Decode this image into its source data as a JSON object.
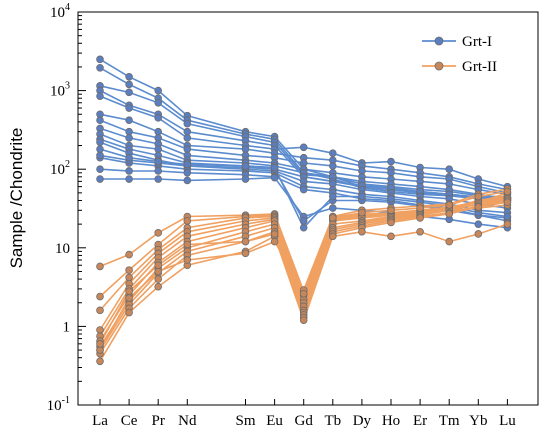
{
  "chart_data": {
    "type": "line",
    "ylabel": "Sample /Chondrite",
    "xlabel": "",
    "yscale": "log",
    "ylim": [
      0.1,
      10000
    ],
    "yticks": [
      {
        "value": 0.1,
        "base": "10",
        "exp": "-1"
      },
      {
        "value": 1,
        "base": "1",
        "exp": ""
      },
      {
        "value": 10,
        "base": "10",
        "exp": ""
      },
      {
        "value": 100,
        "base": "10",
        "exp": "2"
      },
      {
        "value": 1000,
        "base": "10",
        "exp": "3"
      },
      {
        "value": 10000,
        "base": "10",
        "exp": "4"
      }
    ],
    "categories": [
      "La",
      "Ce",
      "Pr",
      "Nd",
      "Sm",
      "Eu",
      "Gd",
      "Tb",
      "Dy",
      "Ho",
      "Er",
      "Tm",
      "Yb",
      "Lu"
    ],
    "legend": {
      "position": "top-right"
    },
    "groups": [
      {
        "name": "Grt-I",
        "color": "#5b8ccf",
        "marker_fill": "#5b7ec0",
        "marker_edge": "#6d6d6d",
        "series": [
          {
            "values": [
              2500,
              1500,
              1000,
              480,
              300,
              260,
              100,
              80,
              60,
              55,
              50,
              48,
              44,
              42
            ]
          },
          {
            "values": [
              1950,
              1200,
              800,
              420,
              280,
              240,
              90,
              75,
              58,
              52,
              48,
              46,
              42,
              40
            ]
          },
          {
            "values": [
              1150,
              950,
              700,
              380,
              260,
              220,
              85,
              80,
              65,
              60,
              55,
              52,
              46,
              44
            ]
          },
          {
            "values": [
              1000,
              650,
              500,
              300,
              230,
              200,
              80,
              70,
              60,
              55,
              52,
              48,
              44,
              42
            ]
          },
          {
            "values": [
              850,
              600,
              450,
              250,
              200,
              180,
              190,
              160,
              120,
              125,
              105,
              100,
              75,
              60
            ]
          },
          {
            "values": [
              500,
              420,
              300,
              200,
              180,
              160,
              140,
              130,
              110,
              100,
              90,
              80,
              65,
              55
            ]
          },
          {
            "values": [
              420,
              300,
              250,
              180,
              150,
              140,
              120,
              110,
              95,
              90,
              80,
              75,
              60,
              50
            ]
          },
          {
            "values": [
              330,
              250,
              210,
              150,
              130,
              120,
              100,
              90,
              80,
              75,
              70,
              65,
              55,
              48
            ]
          },
          {
            "values": [
              280,
              200,
              180,
              130,
              120,
              110,
              90,
              80,
              70,
              65,
              60,
              55,
              48,
              42
            ]
          },
          {
            "values": [
              240,
              180,
              150,
              120,
              110,
              100,
              80,
              70,
              62,
              58,
              52,
              48,
              42,
              38
            ]
          },
          {
            "values": [
              220,
              160,
              130,
              110,
              100,
              95,
              70,
              65,
              55,
              50,
              45,
              42,
              36,
              32
            ]
          },
          {
            "values": [
              140,
              120,
              110,
              100,
              95,
              90,
              60,
              55,
              48,
              45,
              40,
              36,
              30,
              28
            ]
          },
          {
            "values": [
              100,
              95,
              95,
              90,
              85,
              80,
              55,
              50,
              42,
              40,
              35,
              32,
              26,
              22
            ]
          },
          {
            "values": [
              75,
              75,
              75,
              72,
              75,
              78,
              25,
              32,
              30,
              28,
              25,
              23,
              20,
              18
            ]
          },
          {
            "values": [
              150,
              130,
              120,
              110,
              105,
              100,
              22,
              40,
              40,
              38,
              34,
              30,
              26,
              24
            ]
          },
          {
            "values": [
              180,
              140,
              125,
              115,
              110,
              105,
              18,
              45,
              45,
              42,
              38,
              34,
              28,
              25
            ]
          }
        ]
      },
      {
        "name": "Grt-II",
        "color": "#f0a060",
        "marker_fill": "#c8875a",
        "marker_edge": "#6d6d6d",
        "series": [
          {
            "values": [
              5.8,
              8.2,
              15.5,
              25,
              26,
              27,
              2.8,
              25,
              27,
              27,
              28,
              30,
              32,
              35
            ]
          },
          {
            "values": [
              2.4,
              5.2,
              11,
              22,
              25,
              26,
              2.5,
              24,
              26,
              28,
              30,
              32,
              35,
              40
            ]
          },
          {
            "values": [
              1.6,
              4.2,
              9.5,
              18,
              24,
              25,
              2.2,
              23,
              25,
              27,
              30,
              33,
              38,
              42
            ]
          },
          {
            "values": [
              0.9,
              3.5,
              8.5,
              16,
              22,
              24,
              2.0,
              22,
              24,
              26,
              29,
              33,
              38,
              44
            ]
          },
          {
            "values": [
              0.75,
              3.0,
              7.5,
              14,
              20,
              23,
              1.8,
              20,
              22,
              25,
              28,
              32,
              40,
              46
            ]
          },
          {
            "values": [
              0.65,
              2.5,
              6.5,
              12,
              18,
              22,
              1.6,
              18,
              21,
              24,
              27,
              31,
              38,
              50
            ]
          },
          {
            "values": [
              0.55,
              2.1,
              5.5,
              10,
              16,
              20,
              1.5,
              17,
              20,
              23,
              26,
              30,
              36,
              42
            ]
          },
          {
            "values": [
              0.5,
              1.9,
              4.8,
              9,
              14,
              18,
              1.4,
              16,
              19,
              22,
              25,
              28,
              34,
              40
            ]
          },
          {
            "values": [
              0.45,
              1.7,
              4.0,
              8,
              12,
              16,
              1.3,
              15,
              18,
              21,
              24,
              27,
              33,
              38
            ]
          },
          {
            "values": [
              0.36,
              1.5,
              3.2,
              6,
              9,
              14,
              1.2,
              14,
              16,
              14,
              16,
              12,
              15,
              20
            ]
          },
          {
            "values": [
              0.5,
              2.3,
              5.0,
              7,
              8.5,
              12,
              2.9,
              25,
              30,
              32,
              34,
              36,
              48,
              56
            ]
          },
          {
            "values": [
              0.6,
              2.8,
              6.0,
              11,
              12,
              15,
              2.6,
              24,
              28,
              30,
              32,
              35,
              45,
              52
            ]
          }
        ]
      }
    ]
  }
}
